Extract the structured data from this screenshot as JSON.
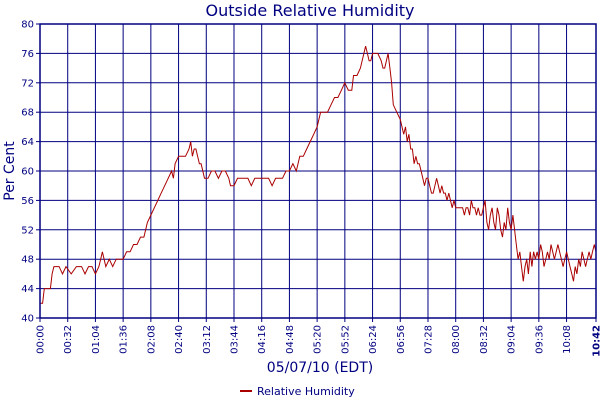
{
  "chart_data": {
    "type": "line",
    "title": "Outside Relative Humidity",
    "xlabel": "05/07/10 (EDT)",
    "ylabel": "Per Cent",
    "ylim": [
      40,
      80
    ],
    "yticks": [
      40,
      44,
      48,
      52,
      56,
      60,
      64,
      68,
      72,
      76,
      80
    ],
    "x_range_minutes": [
      0,
      642
    ],
    "xticks": [
      {
        "label": "00:00",
        "minute": 0
      },
      {
        "label": "00:32",
        "minute": 32
      },
      {
        "label": "01:04",
        "minute": 64
      },
      {
        "label": "01:36",
        "minute": 96
      },
      {
        "label": "02:08",
        "minute": 128
      },
      {
        "label": "02:40",
        "minute": 160
      },
      {
        "label": "03:12",
        "minute": 192
      },
      {
        "label": "03:44",
        "minute": 224
      },
      {
        "label": "04:16",
        "minute": 256
      },
      {
        "label": "04:48",
        "minute": 288
      },
      {
        "label": "05:20",
        "minute": 320
      },
      {
        "label": "05:52",
        "minute": 352
      },
      {
        "label": "06:24",
        "minute": 384
      },
      {
        "label": "06:56",
        "minute": 416
      },
      {
        "label": "07:28",
        "minute": 448
      },
      {
        "label": "08:00",
        "minute": 480
      },
      {
        "label": "08:32",
        "minute": 512
      },
      {
        "label": "09:04",
        "minute": 544
      },
      {
        "label": "09:36",
        "minute": 576
      },
      {
        "label": "10:08",
        "minute": 608
      },
      {
        "label": "10:42",
        "minute": 642,
        "bold": true
      }
    ],
    "grid": true,
    "legend_position": "bottom-center",
    "series": [
      {
        "name": "Relative Humidity",
        "color": "#aa0000",
        "points": [
          [
            0,
            42
          ],
          [
            3,
            42
          ],
          [
            5,
            44
          ],
          [
            12,
            44
          ],
          [
            14,
            46
          ],
          [
            16,
            47
          ],
          [
            22,
            47
          ],
          [
            26,
            46
          ],
          [
            30,
            47
          ],
          [
            36,
            46
          ],
          [
            42,
            47
          ],
          [
            48,
            47
          ],
          [
            52,
            46
          ],
          [
            56,
            47
          ],
          [
            60,
            47
          ],
          [
            64,
            46
          ],
          [
            68,
            47
          ],
          [
            72,
            49
          ],
          [
            76,
            47
          ],
          [
            80,
            48
          ],
          [
            84,
            47
          ],
          [
            88,
            48
          ],
          [
            92,
            48
          ],
          [
            96,
            48
          ],
          [
            100,
            49
          ],
          [
            104,
            49
          ],
          [
            108,
            50
          ],
          [
            112,
            50
          ],
          [
            116,
            51
          ],
          [
            120,
            51
          ],
          [
            124,
            53
          ],
          [
            128,
            54
          ],
          [
            132,
            55
          ],
          [
            136,
            56
          ],
          [
            140,
            57
          ],
          [
            144,
            58
          ],
          [
            148,
            59
          ],
          [
            152,
            60
          ],
          [
            154,
            59
          ],
          [
            156,
            61
          ],
          [
            160,
            62
          ],
          [
            164,
            62
          ],
          [
            168,
            62
          ],
          [
            172,
            63
          ],
          [
            174,
            64
          ],
          [
            176,
            62
          ],
          [
            178,
            63
          ],
          [
            180,
            63
          ],
          [
            182,
            62
          ],
          [
            184,
            61
          ],
          [
            186,
            61
          ],
          [
            188,
            60
          ],
          [
            190,
            59
          ],
          [
            194,
            59
          ],
          [
            198,
            60
          ],
          [
            202,
            60
          ],
          [
            206,
            59
          ],
          [
            210,
            60
          ],
          [
            214,
            60
          ],
          [
            218,
            59
          ],
          [
            220,
            58
          ],
          [
            224,
            58
          ],
          [
            228,
            59
          ],
          [
            232,
            59
          ],
          [
            236,
            59
          ],
          [
            240,
            59
          ],
          [
            244,
            58
          ],
          [
            248,
            59
          ],
          [
            252,
            59
          ],
          [
            256,
            59
          ],
          [
            260,
            59
          ],
          [
            264,
            59
          ],
          [
            268,
            58
          ],
          [
            272,
            59
          ],
          [
            276,
            59
          ],
          [
            280,
            59
          ],
          [
            284,
            60
          ],
          [
            288,
            60
          ],
          [
            292,
            61
          ],
          [
            296,
            60
          ],
          [
            300,
            62
          ],
          [
            304,
            62
          ],
          [
            308,
            63
          ],
          [
            312,
            64
          ],
          [
            316,
            65
          ],
          [
            320,
            66
          ],
          [
            324,
            68
          ],
          [
            328,
            68
          ],
          [
            332,
            68
          ],
          [
            336,
            69
          ],
          [
            340,
            70
          ],
          [
            344,
            70
          ],
          [
            348,
            71
          ],
          [
            352,
            72
          ],
          [
            356,
            71
          ],
          [
            360,
            71
          ],
          [
            362,
            73
          ],
          [
            366,
            73
          ],
          [
            370,
            74
          ],
          [
            374,
            76
          ],
          [
            376,
            77
          ],
          [
            378,
            76
          ],
          [
            380,
            75
          ],
          [
            382,
            75
          ],
          [
            384,
            76
          ],
          [
            386,
            76
          ],
          [
            390,
            76
          ],
          [
            394,
            75
          ],
          [
            396,
            74
          ],
          [
            398,
            74
          ],
          [
            400,
            75
          ],
          [
            402,
            76
          ],
          [
            404,
            74
          ],
          [
            406,
            72
          ],
          [
            408,
            69
          ],
          [
            412,
            68
          ],
          [
            416,
            67
          ],
          [
            418,
            66
          ],
          [
            420,
            65
          ],
          [
            422,
            66
          ],
          [
            424,
            64
          ],
          [
            426,
            65
          ],
          [
            428,
            63
          ],
          [
            430,
            63
          ],
          [
            432,
            61
          ],
          [
            434,
            62
          ],
          [
            436,
            61
          ],
          [
            438,
            61
          ],
          [
            440,
            60
          ],
          [
            442,
            59
          ],
          [
            444,
            58
          ],
          [
            446,
            59
          ],
          [
            448,
            59
          ],
          [
            450,
            58
          ],
          [
            452,
            57
          ],
          [
            454,
            57
          ],
          [
            456,
            58
          ],
          [
            458,
            59
          ],
          [
            460,
            58
          ],
          [
            462,
            57
          ],
          [
            464,
            58
          ],
          [
            466,
            57
          ],
          [
            468,
            57
          ],
          [
            470,
            56
          ],
          [
            472,
            57
          ],
          [
            474,
            56
          ],
          [
            476,
            55
          ],
          [
            478,
            56
          ],
          [
            480,
            55
          ],
          [
            484,
            55
          ],
          [
            488,
            55
          ],
          [
            490,
            54
          ],
          [
            492,
            55
          ],
          [
            494,
            55
          ],
          [
            496,
            54
          ],
          [
            498,
            56
          ],
          [
            500,
            55
          ],
          [
            502,
            55
          ],
          [
            504,
            54
          ],
          [
            506,
            55
          ],
          [
            508,
            54
          ],
          [
            510,
            54
          ],
          [
            512,
            55
          ],
          [
            514,
            56
          ],
          [
            516,
            53
          ],
          [
            518,
            52
          ],
          [
            520,
            54
          ],
          [
            522,
            55
          ],
          [
            524,
            53
          ],
          [
            526,
            52
          ],
          [
            528,
            55
          ],
          [
            530,
            54
          ],
          [
            532,
            52
          ],
          [
            534,
            51
          ],
          [
            536,
            53
          ],
          [
            538,
            52
          ],
          [
            540,
            55
          ],
          [
            542,
            53
          ],
          [
            544,
            52
          ],
          [
            546,
            54
          ],
          [
            548,
            52
          ],
          [
            550,
            50
          ],
          [
            552,
            48
          ],
          [
            554,
            49
          ],
          [
            556,
            47
          ],
          [
            558,
            45
          ],
          [
            560,
            47
          ],
          [
            562,
            48
          ],
          [
            564,
            46
          ],
          [
            566,
            49
          ],
          [
            568,
            47
          ],
          [
            570,
            49
          ],
          [
            572,
            48
          ],
          [
            574,
            49
          ],
          [
            576,
            48
          ],
          [
            578,
            50
          ],
          [
            580,
            49
          ],
          [
            582,
            47
          ],
          [
            584,
            48
          ],
          [
            586,
            49
          ],
          [
            588,
            48
          ],
          [
            590,
            50
          ],
          [
            592,
            49
          ],
          [
            594,
            48
          ],
          [
            596,
            49
          ],
          [
            598,
            50
          ],
          [
            600,
            49
          ],
          [
            602,
            48
          ],
          [
            604,
            47
          ],
          [
            606,
            48
          ],
          [
            608,
            49
          ],
          [
            610,
            48
          ],
          [
            612,
            47
          ],
          [
            614,
            46
          ],
          [
            616,
            45
          ],
          [
            618,
            47
          ],
          [
            620,
            46
          ],
          [
            622,
            48
          ],
          [
            624,
            47
          ],
          [
            626,
            49
          ],
          [
            628,
            48
          ],
          [
            630,
            47
          ],
          [
            632,
            48
          ],
          [
            634,
            49
          ],
          [
            636,
            48
          ],
          [
            638,
            49
          ],
          [
            640,
            50
          ],
          [
            642,
            49
          ]
        ]
      }
    ]
  }
}
